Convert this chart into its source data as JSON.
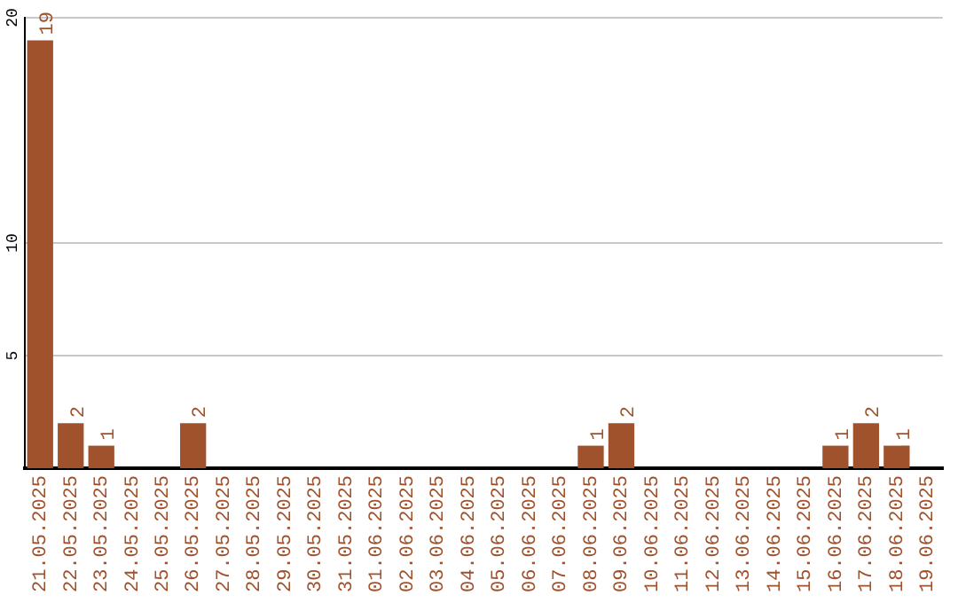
{
  "chart_data": {
    "type": "bar",
    "categories": [
      "21.05.2025",
      "22.05.2025",
      "23.05.2025",
      "24.05.2025",
      "25.05.2025",
      "26.05.2025",
      "27.05.2025",
      "28.05.2025",
      "29.05.2025",
      "30.05.2025",
      "31.05.2025",
      "01.06.2025",
      "02.06.2025",
      "03.06.2025",
      "04.06.2025",
      "05.06.2025",
      "06.06.2025",
      "07.06.2025",
      "08.06.2025",
      "09.06.2025",
      "10.06.2025",
      "11.06.2025",
      "12.06.2025",
      "13.06.2025",
      "14.06.2025",
      "15.06.2025",
      "16.06.2025",
      "17.06.2025",
      "18.06.2025",
      "19.06.2025"
    ],
    "values": [
      19,
      2,
      1,
      0,
      0,
      2,
      0,
      0,
      0,
      0,
      0,
      0,
      0,
      0,
      0,
      0,
      0,
      0,
      1,
      2,
      0,
      0,
      0,
      0,
      0,
      0,
      1,
      2,
      1,
      0
    ],
    "value_labels": [
      "19",
      "2",
      "1",
      null,
      null,
      "2",
      null,
      null,
      null,
      null,
      null,
      null,
      null,
      null,
      null,
      null,
      null,
      null,
      "1",
      "2",
      null,
      null,
      null,
      null,
      null,
      null,
      "1",
      "2",
      "1",
      null
    ],
    "color": "#a0522d",
    "ylim": [
      0,
      20
    ],
    "yticks": [
      5,
      10,
      20
    ],
    "grid": "y",
    "legend": false
  }
}
